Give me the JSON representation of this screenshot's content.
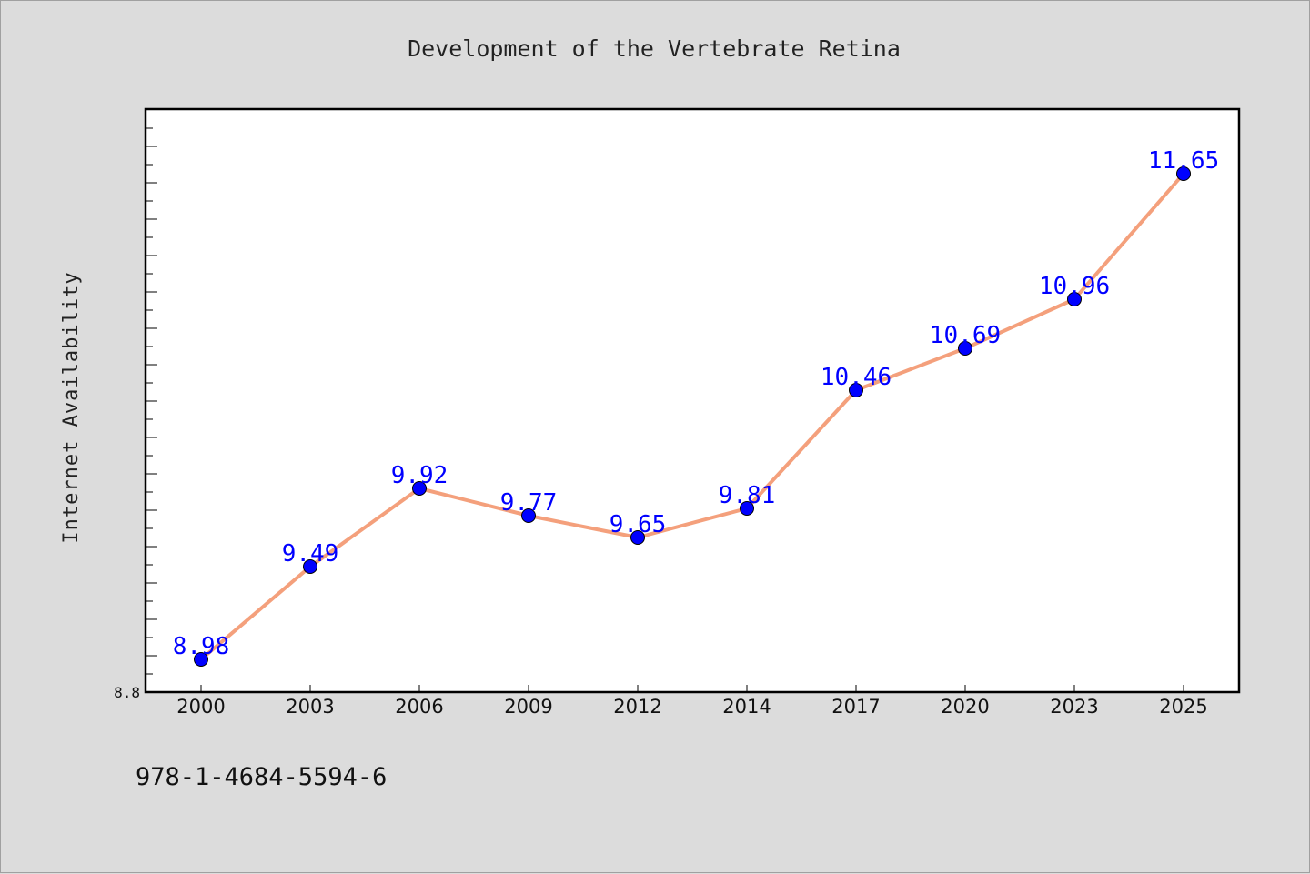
{
  "chart_data": {
    "type": "line",
    "title": "Development of the Vertebrate Retina",
    "xlabel": "",
    "ylabel": "Internet Availability",
    "categories": [
      "2000",
      "2003",
      "2006",
      "2009",
      "2012",
      "2014",
      "2017",
      "2020",
      "2023",
      "2025"
    ],
    "series": [
      {
        "values": [
          8.98,
          9.49,
          9.92,
          9.77,
          9.65,
          9.81,
          10.46,
          10.69,
          10.96,
          11.65
        ]
      }
    ],
    "ylim": [
      8.8,
      12.0
    ],
    "ytick_labels": [
      "8.8"
    ],
    "grid": false,
    "legend": "none",
    "line_color": "#f4a07c",
    "marker_color": "#0000ff",
    "label_color": "#0000ff"
  },
  "footer": {
    "isbn": "978-1-4684-5594-6"
  }
}
